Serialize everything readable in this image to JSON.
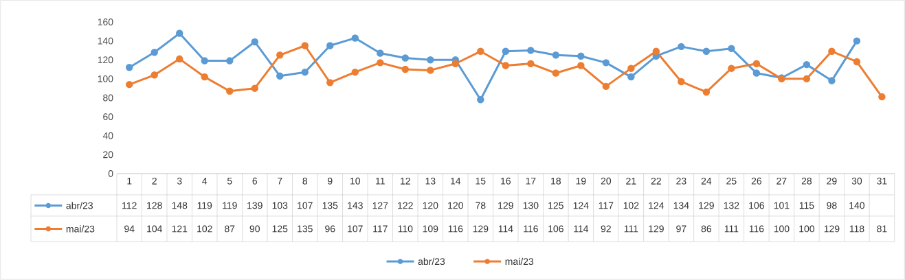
{
  "chart_data": {
    "type": "line",
    "categories": [
      "1",
      "2",
      "3",
      "4",
      "5",
      "6",
      "7",
      "8",
      "9",
      "10",
      "11",
      "12",
      "13",
      "14",
      "15",
      "16",
      "17",
      "18",
      "19",
      "20",
      "21",
      "22",
      "23",
      "24",
      "25",
      "26",
      "27",
      "28",
      "29",
      "30",
      "31"
    ],
    "series": [
      {
        "name": "abr/23",
        "color": "#5b9bd5",
        "values": [
          112,
          128,
          148,
          119,
          119,
          139,
          103,
          107,
          135,
          143,
          127,
          122,
          120,
          120,
          78,
          129,
          130,
          125,
          124,
          117,
          102,
          124,
          134,
          129,
          132,
          106,
          101,
          115,
          98,
          140,
          null
        ]
      },
      {
        "name": "mai/23",
        "color": "#ed7d31",
        "values": [
          94,
          104,
          121,
          102,
          87,
          90,
          125,
          135,
          96,
          107,
          117,
          110,
          109,
          116,
          129,
          114,
          116,
          106,
          114,
          92,
          111,
          129,
          97,
          86,
          111,
          116,
          100,
          100,
          129,
          118,
          81
        ]
      }
    ],
    "ylim": [
      0,
      160
    ],
    "yticks": [
      0,
      20,
      40,
      60,
      80,
      100,
      120,
      140,
      160
    ],
    "data_labels": true,
    "legend": "bottom",
    "marker": "circle",
    "line_style": "solid"
  }
}
